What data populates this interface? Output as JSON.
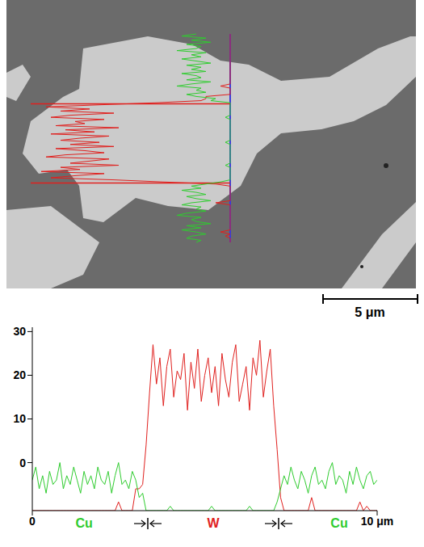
{
  "chart_data": {
    "type": "line",
    "x": [
      0,
      0.1,
      0.2,
      0.3,
      0.4,
      0.5,
      0.6,
      0.7,
      0.8,
      0.9,
      1,
      1.1,
      1.2,
      1.3,
      1.4,
      1.5,
      1.6,
      1.7,
      1.8,
      1.9,
      2,
      2.1,
      2.2,
      2.3,
      2.4,
      2.5,
      2.6,
      2.7,
      2.8,
      2.9,
      3,
      3.1,
      3.2,
      3.3,
      3.4,
      3.5,
      3.6,
      3.7,
      3.8,
      3.9,
      4,
      4.1,
      4.2,
      4.3,
      4.4,
      4.5,
      4.6,
      4.7,
      4.8,
      4.9,
      5,
      5.1,
      5.2,
      5.3,
      5.4,
      5.5,
      5.6,
      5.7,
      5.8,
      5.9,
      6,
      6.1,
      6.2,
      6.3,
      6.4,
      6.5,
      6.6,
      6.7,
      6.8,
      6.9,
      7,
      7.1,
      7.2,
      7.3,
      7.4,
      7.5,
      7.6,
      7.7,
      7.8,
      7.9,
      8,
      8.1,
      8.2,
      8.3,
      8.4,
      8.5,
      8.6,
      8.7,
      8.8,
      8.9,
      9,
      9.1,
      9.2,
      9.3,
      9.4,
      9.5,
      9.6,
      9.7,
      9.8,
      9.9,
      10
    ],
    "series": [
      {
        "name": "W",
        "color": "#e0201e",
        "values": [
          -11,
          -11,
          -11,
          -11,
          -11,
          -11,
          -11,
          -11,
          -11,
          -11,
          -11,
          -11,
          -11,
          -11,
          -11,
          -11,
          -11,
          -11,
          -11,
          -11,
          -11,
          -11,
          -11,
          -11,
          -11,
          -9,
          -11,
          -11,
          -11,
          -11,
          -6,
          -6,
          -5,
          4,
          16,
          27,
          18,
          24,
          13,
          22,
          26,
          15,
          21,
          19,
          25,
          12,
          23,
          17,
          26,
          14,
          20,
          24,
          16,
          22,
          13,
          25,
          19,
          15,
          23,
          27,
          14,
          18,
          22,
          12,
          24,
          20,
          28,
          15,
          21,
          26,
          13,
          3,
          -8,
          -11,
          -11,
          -11,
          -11,
          -11,
          -11,
          -11,
          -11,
          -8,
          -11,
          -11,
          -11,
          -11,
          -11,
          -11,
          -11,
          -11,
          -11,
          -11,
          -11,
          -11,
          -11,
          -9,
          -11,
          -10,
          -11,
          -11,
          -11
        ]
      },
      {
        "name": "Cu",
        "color": "#2fcc2f",
        "values": [
          -4,
          -1,
          -6,
          -3,
          -7,
          -2,
          -5,
          -4,
          0,
          -6,
          -3,
          -5,
          -1,
          -4,
          -7,
          -2,
          -5,
          -3,
          -6,
          -1,
          -4,
          -5,
          -2,
          -7,
          -3,
          0,
          -5,
          -4,
          -6,
          -2,
          -4,
          -8,
          -7,
          -11,
          -11,
          -11,
          -11,
          -11,
          -11,
          -11,
          -10,
          -11,
          -11,
          -11,
          -11,
          -11,
          -11,
          -11,
          -11,
          -11,
          -11,
          -11,
          -10,
          -11,
          -11,
          -11,
          -11,
          -11,
          -11,
          -11,
          -11,
          -11,
          -11,
          -10,
          -11,
          -11,
          -11,
          -11,
          -11,
          -11,
          -11,
          -9,
          -6,
          -3,
          -5,
          -1,
          -4,
          -6,
          -2,
          -4,
          -7,
          -3,
          -1,
          -5,
          -4,
          -6,
          -2,
          0,
          -5,
          -3,
          -4,
          -7,
          -2,
          -5,
          -1,
          -4,
          -6,
          -3,
          -2,
          -5,
          -4
        ]
      }
    ],
    "xlim": [
      0,
      10
    ],
    "xticks": [
      0,
      {
        "value": 10,
        "label": "10 μm"
      }
    ],
    "ylim": [
      -11,
      31
    ],
    "yticks": [
      0,
      10,
      20,
      30
    ],
    "grid": false,
    "annotations": [
      {
        "text": "Cu",
        "x": 1.5
      },
      {
        "text": "W",
        "x": 5.25,
        "range": [
          3.35,
          7.15
        ]
      },
      {
        "text": "Cu",
        "x": 8.9
      }
    ]
  },
  "micrograph": {
    "scale_bar": "5 μm"
  }
}
